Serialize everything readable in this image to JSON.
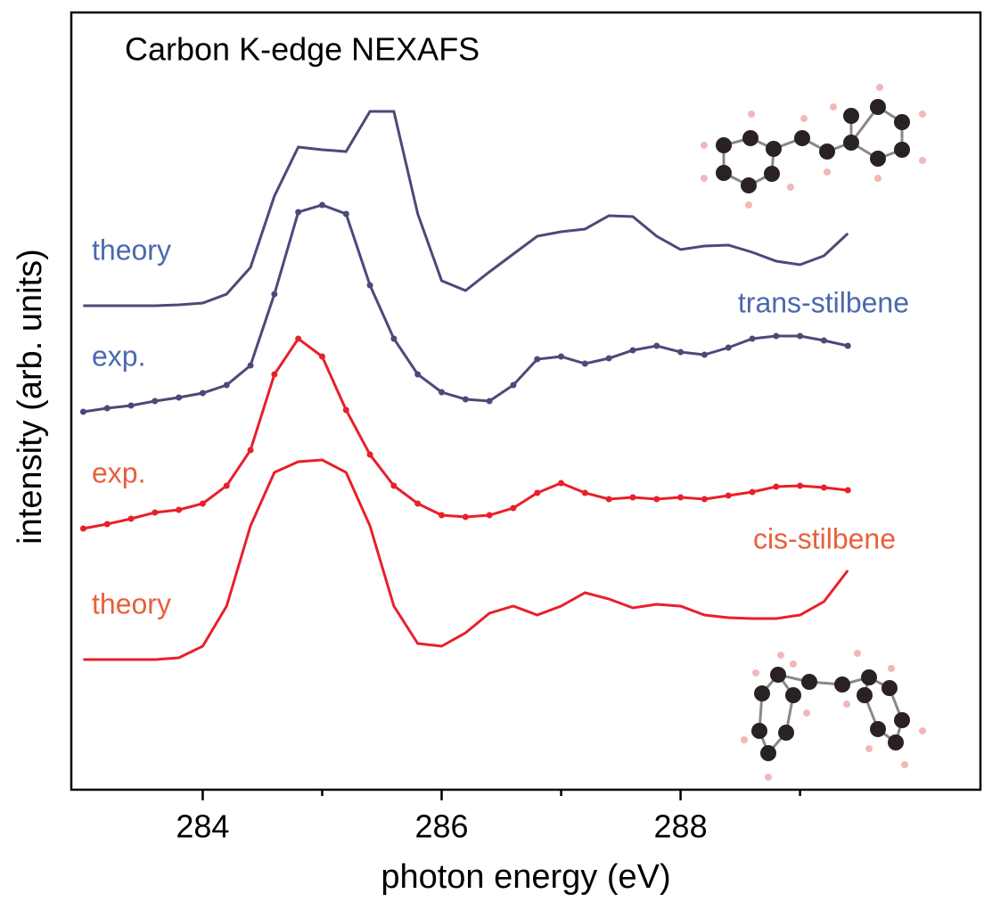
{
  "chart_data": {
    "type": "line",
    "title": "Carbon K-edge NEXAFS",
    "xlabel": "photon energy (eV)",
    "ylabel": "intensity (arb. units)",
    "xlim": [
      282.9,
      290.51
    ],
    "ylim": [
      0,
      8.72
    ],
    "xticks": [
      284,
      286,
      288
    ],
    "xminor_ticks": [
      285,
      287,
      289
    ],
    "x": [
      283.0,
      283.2,
      283.4,
      283.6,
      283.8,
      284.0,
      284.2,
      284.4,
      284.6,
      284.8,
      285.0,
      285.2,
      285.4,
      285.6,
      285.8,
      286.0,
      286.2,
      286.4,
      286.6,
      286.8,
      287.0,
      287.2,
      287.4,
      287.6,
      287.8,
      288.0,
      288.2,
      288.4,
      288.6,
      288.8,
      289.0,
      289.2,
      289.4
    ],
    "series": [
      {
        "name": "theory",
        "color": "#4a4a7a",
        "label_color": "#4a68ae",
        "markers": false,
        "values": [
          5.43,
          5.43,
          5.43,
          5.43,
          5.44,
          5.46,
          5.56,
          5.86,
          6.66,
          7.21,
          7.18,
          7.16,
          7.61,
          7.61,
          6.46,
          5.71,
          5.6,
          5.81,
          6.01,
          6.21,
          6.26,
          6.29,
          6.44,
          6.43,
          6.21,
          6.06,
          6.1,
          6.11,
          6.03,
          5.93,
          5.89,
          5.99,
          6.24
        ]
      },
      {
        "name": "exp.",
        "color": "#4a4a7a",
        "label_color": "#4a68ae",
        "markers": true,
        "values": [
          4.24,
          4.28,
          4.31,
          4.36,
          4.4,
          4.45,
          4.54,
          4.76,
          5.56,
          6.48,
          6.56,
          6.46,
          5.66,
          5.06,
          4.66,
          4.46,
          4.38,
          4.36,
          4.54,
          4.83,
          4.86,
          4.78,
          4.84,
          4.93,
          4.98,
          4.91,
          4.88,
          4.96,
          5.06,
          5.09,
          5.09,
          5.04,
          4.98
        ]
      },
      {
        "name": "exp.",
        "color": "#e8202a",
        "label_color": "#e8603a",
        "markers": true,
        "values": [
          2.93,
          2.98,
          3.04,
          3.11,
          3.14,
          3.21,
          3.41,
          3.81,
          4.66,
          5.06,
          4.86,
          4.26,
          3.76,
          3.41,
          3.21,
          3.08,
          3.06,
          3.08,
          3.16,
          3.33,
          3.44,
          3.33,
          3.26,
          3.28,
          3.26,
          3.28,
          3.26,
          3.3,
          3.34,
          3.4,
          3.41,
          3.39,
          3.36
        ]
      },
      {
        "name": "theory",
        "color": "#e8202a",
        "label_color": "#e8603a",
        "markers": false,
        "values": [
          1.46,
          1.46,
          1.46,
          1.46,
          1.48,
          1.61,
          2.06,
          2.96,
          3.56,
          3.68,
          3.7,
          3.56,
          2.96,
          2.06,
          1.64,
          1.61,
          1.76,
          1.98,
          2.06,
          1.96,
          2.06,
          2.21,
          2.14,
          2.04,
          2.08,
          2.06,
          1.96,
          1.93,
          1.92,
          1.92,
          1.96,
          2.11,
          2.46
        ]
      }
    ],
    "annotations": [
      {
        "text": "trans-stilbene",
        "color": "#4a68ae"
      },
      {
        "text": "cis-stilbene",
        "color": "#e8603a"
      }
    ]
  }
}
